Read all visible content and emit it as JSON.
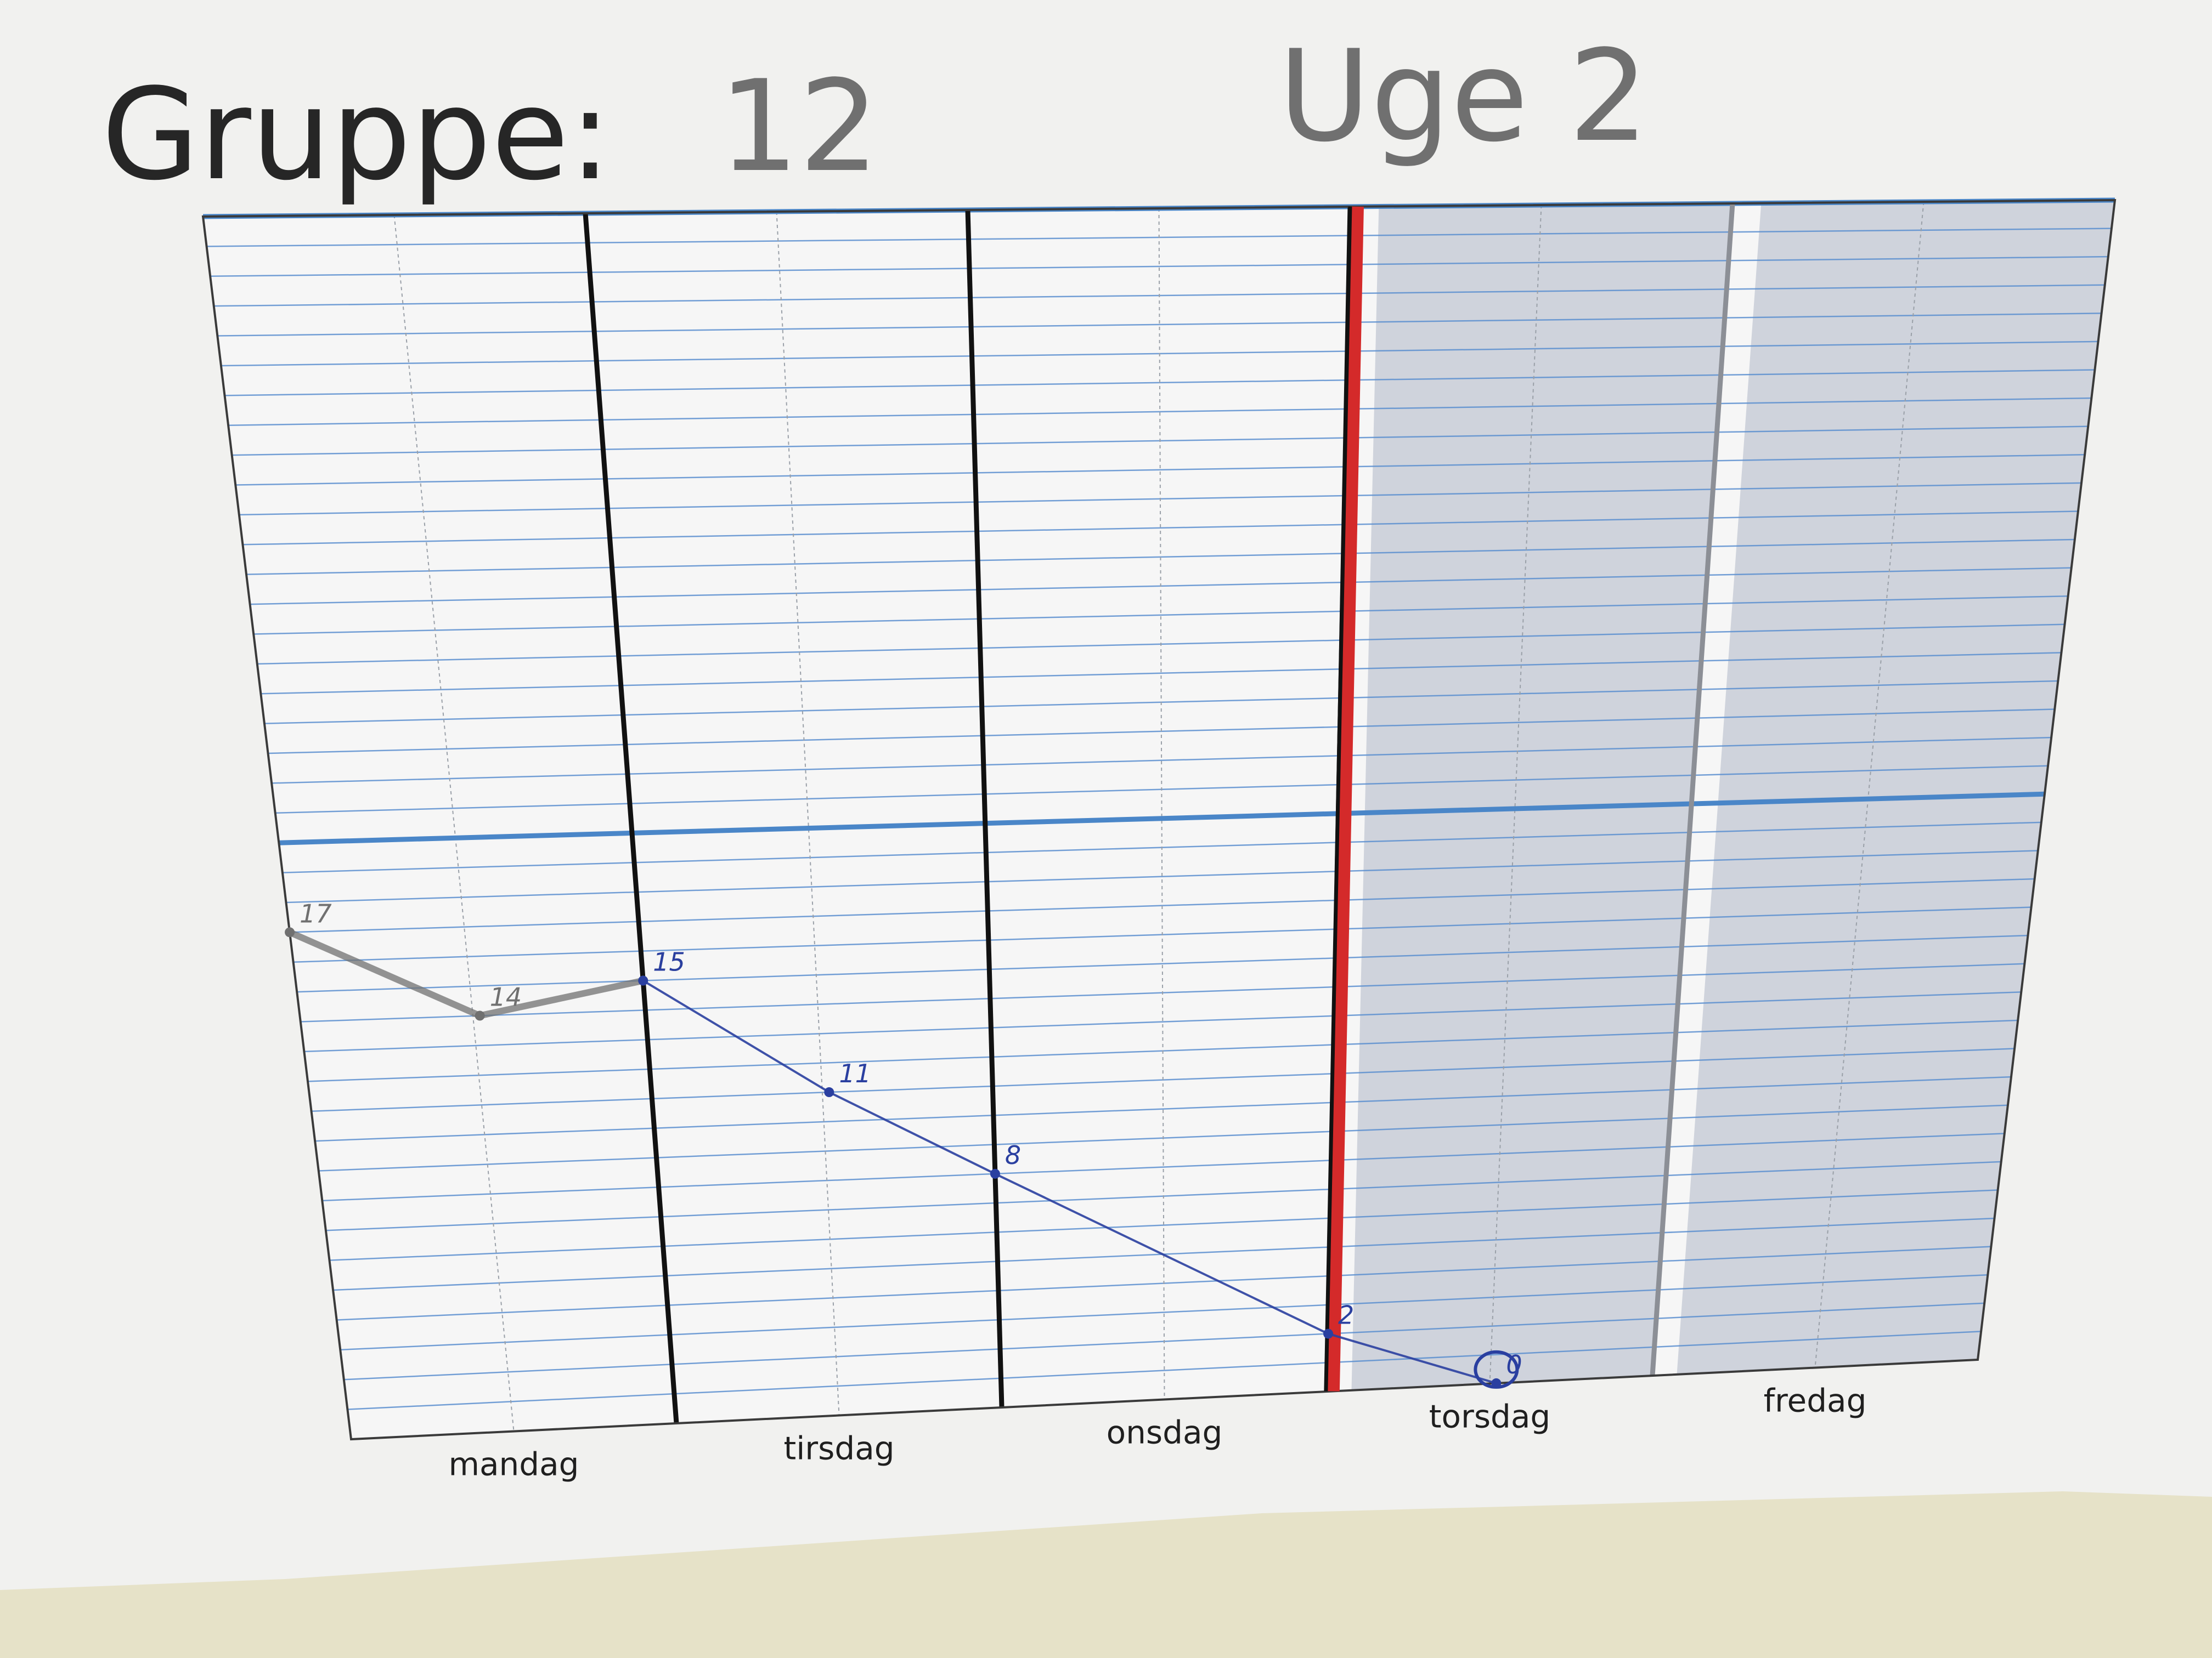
{
  "header": {
    "group_label": "Gruppe:",
    "group_number": "12",
    "week_label": "Uge 2"
  },
  "chart_data": {
    "type": "line",
    "title": "",
    "categories": [
      "mandag",
      "tirsdag",
      "onsdag",
      "torsdag",
      "fredag"
    ],
    "days_elapsed_marker": "after onsdag",
    "shaded_days": [
      "torsdag",
      "fredag"
    ],
    "ylim": [
      0,
      41
    ],
    "grid": true,
    "reference_line": {
      "y": 20,
      "color": "#4a86c8"
    },
    "series": [
      {
        "color": "#707070",
        "points": [
          {
            "x": "mandag start",
            "y": 17,
            "label": "17"
          },
          {
            "x": "mandag mid",
            "y": 14,
            "label": "14"
          },
          {
            "x": "tirsdag start",
            "y": 15,
            "label": "15"
          }
        ]
      },
      {
        "color": "#2a3fa0",
        "points": [
          {
            "x": "tirsdag start",
            "y": 15,
            "label": "15"
          },
          {
            "x": "tirsdag mid",
            "y": 11,
            "label": "11"
          },
          {
            "x": "onsdag start",
            "y": 8,
            "label": "8"
          },
          {
            "x": "torsdag start",
            "y": 2,
            "label": "2"
          },
          {
            "x": "torsdag mid",
            "y": 0,
            "label": "0"
          }
        ]
      }
    ]
  },
  "colors": {
    "paper": "#f1f1ef",
    "grid_line": "#5b8fd0",
    "shade": "#cfd3dc",
    "today_marker": "#d42a2a",
    "background": "#e6e2c8"
  }
}
